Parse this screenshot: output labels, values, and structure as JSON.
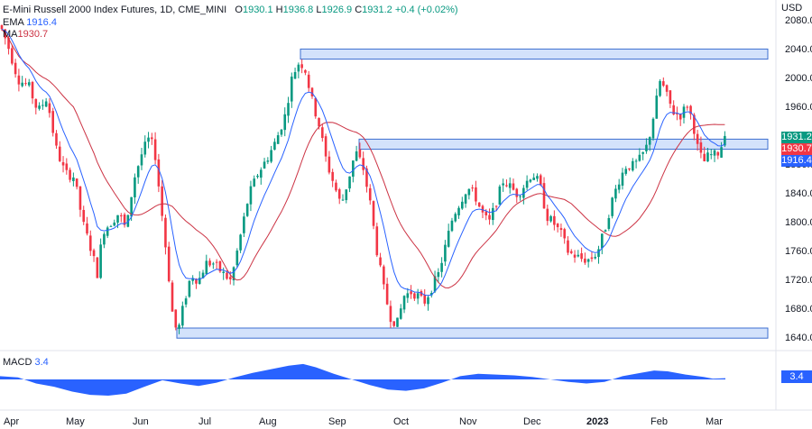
{
  "header": {
    "symbol": "E-Mini Russell 2000 Index Futures, 1D, CME_MINI",
    "o_label": "O",
    "o": "1930.1",
    "h_label": "H",
    "h": "1936.8",
    "l_label": "L",
    "l": "1926.9",
    "c_label": "C",
    "c": "1931.2",
    "change": "+0.4 (+0.02%)",
    "ema_label": "EMA",
    "ema_value": "1916.4",
    "ma_label": "MA",
    "ma_value": "1930.7"
  },
  "currency": "USD",
  "price_tags": [
    {
      "label": "1931.2",
      "value": 1931.2,
      "color": "#089981"
    },
    {
      "label": "1930.7",
      "value": 1930.7,
      "color": "#f23645"
    },
    {
      "label": "1916.4",
      "value": 1916.4,
      "color": "#2962ff"
    }
  ],
  "macd": {
    "label": "MACD",
    "value": "3.4"
  },
  "colors": {
    "up": "#089981",
    "down": "#f23645",
    "ema": "#2962ff",
    "ma": "#cc3344",
    "zone_fill": "#d3e2fb",
    "zone_border": "#3d6fd0",
    "macd_fill": "#2962ff"
  },
  "chart_data": {
    "type": "candlestick",
    "ylim": [
      1625,
      2110
    ],
    "yticks": [
      2080,
      2040,
      2000,
      1960,
      1920,
      1880,
      1840,
      1800,
      1760,
      1720,
      1680,
      1640
    ],
    "ytick_labels": [
      "2080.0",
      "2040.0",
      "2000.0",
      "1960.0",
      "1920.0",
      "1880.0",
      "1840.0",
      "1800.0",
      "1760.0",
      "1720.0",
      "1680.0",
      "1640.0"
    ],
    "x_labels": [
      "Apr",
      "May",
      "Jun",
      "Jul",
      "Aug",
      "Sep",
      "Oct",
      "Nov",
      "Dec",
      "2023",
      "Feb",
      "Mar"
    ],
    "bold_x_label": "2023",
    "zones": [
      {
        "from": 2028,
        "to": 2042,
        "start": "Aug",
        "end": "present"
      },
      {
        "from": 1903,
        "to": 1917,
        "start": "Sep",
        "end": "present"
      },
      {
        "from": 1641,
        "to": 1655,
        "start": "Jun",
        "end": "present"
      }
    ],
    "price_path": [
      [
        0,
        2075
      ],
      [
        8,
        2050
      ],
      [
        20,
        2000
      ],
      [
        32,
        1990
      ],
      [
        42,
        1955
      ],
      [
        52,
        1975
      ],
      [
        62,
        1905
      ],
      [
        72,
        1870
      ],
      [
        82,
        1865
      ],
      [
        92,
        1800
      ],
      [
        102,
        1760
      ],
      [
        108,
        1730
      ],
      [
        114,
        1790
      ],
      [
        122,
        1800
      ],
      [
        132,
        1815
      ],
      [
        140,
        1790
      ],
      [
        148,
        1860
      ],
      [
        158,
        1900
      ],
      [
        166,
        1920
      ],
      [
        172,
        1895
      ],
      [
        178,
        1830
      ],
      [
        186,
        1740
      ],
      [
        192,
        1665
      ],
      [
        197,
        1648
      ],
      [
        204,
        1690
      ],
      [
        212,
        1730
      ],
      [
        220,
        1720
      ],
      [
        228,
        1745
      ],
      [
        236,
        1745
      ],
      [
        246,
        1732
      ],
      [
        256,
        1720
      ],
      [
        266,
        1780
      ],
      [
        276,
        1840
      ],
      [
        286,
        1870
      ],
      [
        296,
        1890
      ],
      [
        306,
        1915
      ],
      [
        316,
        1950
      ],
      [
        324,
        2005
      ],
      [
        332,
        2025
      ],
      [
        338,
        2015
      ],
      [
        346,
        1970
      ],
      [
        354,
        1935
      ],
      [
        362,
        1885
      ],
      [
        370,
        1855
      ],
      [
        378,
        1825
      ],
      [
        386,
        1860
      ],
      [
        394,
        1900
      ],
      [
        402,
        1880
      ],
      [
        410,
        1830
      ],
      [
        418,
        1760
      ],
      [
        426,
        1705
      ],
      [
        433,
        1670
      ],
      [
        440,
        1660
      ],
      [
        448,
        1700
      ],
      [
        456,
        1705
      ],
      [
        463,
        1700
      ],
      [
        470,
        1690
      ],
      [
        478,
        1710
      ],
      [
        486,
        1730
      ],
      [
        494,
        1770
      ],
      [
        502,
        1810
      ],
      [
        510,
        1830
      ],
      [
        518,
        1850
      ],
      [
        526,
        1840
      ],
      [
        534,
        1815
      ],
      [
        542,
        1800
      ],
      [
        550,
        1830
      ],
      [
        558,
        1860
      ],
      [
        566,
        1850
      ],
      [
        574,
        1840
      ],
      [
        582,
        1855
      ],
      [
        590,
        1870
      ],
      [
        598,
        1855
      ],
      [
        606,
        1810
      ],
      [
        614,
        1800
      ],
      [
        622,
        1785
      ],
      [
        630,
        1760
      ],
      [
        638,
        1755
      ],
      [
        646,
        1750
      ],
      [
        654,
        1750
      ],
      [
        662,
        1760
      ],
      [
        670,
        1790
      ],
      [
        678,
        1830
      ],
      [
        686,
        1860
      ],
      [
        694,
        1880
      ],
      [
        702,
        1880
      ],
      [
        710,
        1890
      ],
      [
        718,
        1910
      ],
      [
        726,
        1960
      ],
      [
        732,
        2000
      ],
      [
        738,
        1980
      ],
      [
        746,
        1955
      ],
      [
        754,
        1950
      ],
      [
        762,
        1965
      ],
      [
        768,
        1940
      ],
      [
        774,
        1900
      ],
      [
        780,
        1885
      ],
      [
        786,
        1895
      ],
      [
        792,
        1895
      ],
      [
        798,
        1900
      ],
      [
        804,
        1931
      ]
    ],
    "macd_path": [
      [
        0,
        8
      ],
      [
        20,
        5
      ],
      [
        40,
        -10
      ],
      [
        60,
        -18
      ],
      [
        80,
        -30
      ],
      [
        100,
        -38
      ],
      [
        120,
        -40
      ],
      [
        140,
        -35
      ],
      [
        160,
        -18
      ],
      [
        180,
        -2
      ],
      [
        200,
        -10
      ],
      [
        220,
        -16
      ],
      [
        240,
        -8
      ],
      [
        260,
        5
      ],
      [
        280,
        16
      ],
      [
        300,
        25
      ],
      [
        320,
        34
      ],
      [
        336,
        38
      ],
      [
        350,
        30
      ],
      [
        370,
        14
      ],
      [
        390,
        0
      ],
      [
        410,
        -14
      ],
      [
        430,
        -25
      ],
      [
        450,
        -28
      ],
      [
        470,
        -22
      ],
      [
        490,
        -8
      ],
      [
        510,
        8
      ],
      [
        530,
        14
      ],
      [
        550,
        12
      ],
      [
        570,
        10
      ],
      [
        590,
        6
      ],
      [
        610,
        0
      ],
      [
        630,
        -6
      ],
      [
        650,
        -10
      ],
      [
        670,
        -6
      ],
      [
        690,
        8
      ],
      [
        710,
        16
      ],
      [
        725,
        22
      ],
      [
        740,
        20
      ],
      [
        760,
        12
      ],
      [
        780,
        6
      ],
      [
        790,
        2
      ],
      [
        804,
        3
      ]
    ]
  }
}
